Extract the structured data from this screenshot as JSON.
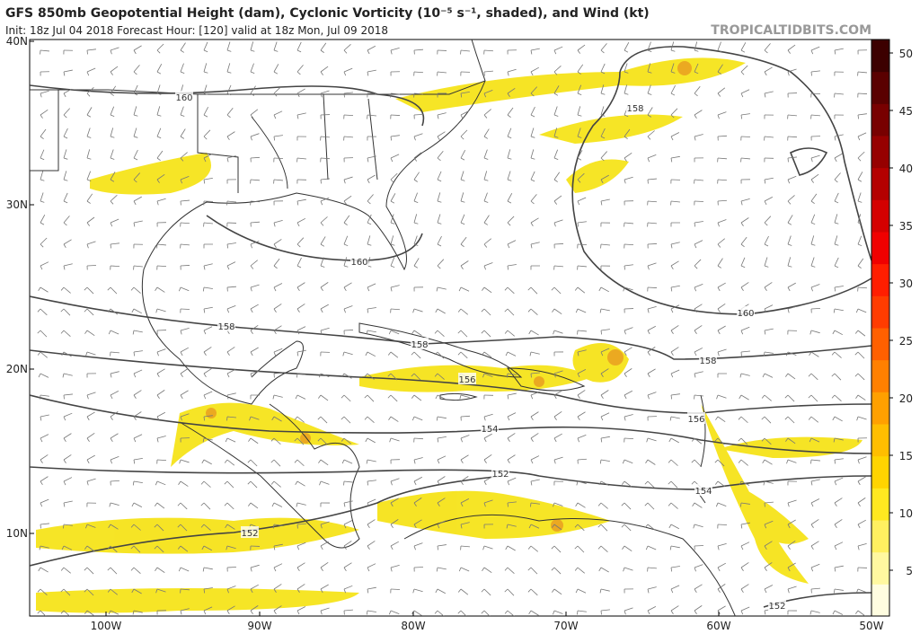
{
  "header": {
    "title": "GFS 850mb Geopotential Height (dam), Cyclonic Vorticity (10⁻⁵ s⁻¹, shaded), and Wind (kt)",
    "subtitle": "Init: 18z Jul 04 2018   Forecast Hour: [120]   valid at 18z Mon, Jul 09 2018",
    "source": "TROPICALTIDBITS.COM"
  },
  "map": {
    "lat_labels": [
      "40N",
      "30N",
      "20N",
      "10N"
    ],
    "lon_labels": [
      "100W",
      "90W",
      "80W",
      "70W",
      "60W",
      "50W"
    ],
    "contour_labels": [
      "160",
      "158",
      "160",
      "158",
      "160",
      "158",
      "158",
      "156",
      "156",
      "154",
      "152",
      "154",
      "152",
      "152"
    ]
  },
  "colorbar": {
    "ticks": [
      5,
      10,
      15,
      20,
      25,
      30,
      35,
      40,
      45,
      50
    ]
  }
}
